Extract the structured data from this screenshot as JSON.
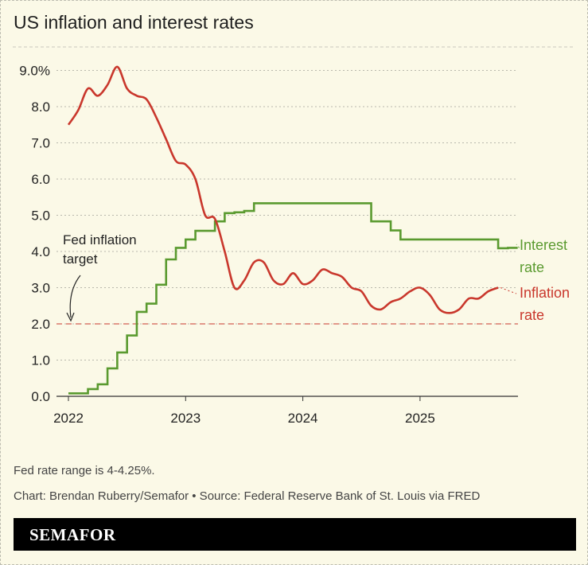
{
  "title": "US inflation and interest rates",
  "footnote": "Fed rate range is 4-4.25%.",
  "credit": "Chart: Brendan Ruberry/Semafor • Source: Federal Reserve Bank of St. Louis via FRED",
  "brand": "SEMAFOR",
  "chart_data": {
    "type": "line",
    "title": "US inflation and interest rates",
    "ylim": [
      0,
      9
    ],
    "yticks": [
      "0.0",
      "1.0",
      "2.0",
      "3.0",
      "4.0",
      "5.0",
      "6.0",
      "7.0",
      "8.0",
      "9.0%"
    ],
    "xticks": [
      "2022",
      "2023",
      "2024",
      "2025"
    ],
    "x_start": "2022-01",
    "x_step": "month",
    "series": [
      {
        "name": "Interest rate",
        "label_lines": [
          "Interest",
          "rate"
        ],
        "color": "#5a9a2f",
        "style": "step",
        "values": [
          0.08,
          0.08,
          0.2,
          0.33,
          0.77,
          1.21,
          1.68,
          2.33,
          2.56,
          3.08,
          3.78,
          4.1,
          4.33,
          4.57,
          4.57,
          4.83,
          5.06,
          5.08,
          5.12,
          5.33,
          5.33,
          5.33,
          5.33,
          5.33,
          5.33,
          5.33,
          5.33,
          5.33,
          5.33,
          5.33,
          5.33,
          4.83,
          4.83,
          4.58,
          4.33,
          4.33,
          4.33,
          4.33,
          4.33,
          4.33,
          4.33,
          4.33,
          4.33,
          4.33,
          4.09,
          4.1
        ]
      },
      {
        "name": "Inflation rate",
        "label_lines": [
          "Inflation",
          "rate"
        ],
        "color": "#c9372c",
        "style": "smooth",
        "values": [
          7.5,
          7.9,
          8.5,
          8.3,
          8.6,
          9.1,
          8.5,
          8.3,
          8.2,
          7.7,
          7.1,
          6.5,
          6.4,
          6.0,
          5.0,
          4.9,
          4.0,
          3.0,
          3.2,
          3.7,
          3.7,
          3.2,
          3.1,
          3.4,
          3.1,
          3.2,
          3.5,
          3.4,
          3.3,
          3.0,
          2.9,
          2.5,
          2.4,
          2.6,
          2.7,
          2.9,
          3.0,
          2.8,
          2.4,
          2.3,
          2.4,
          2.7,
          2.7,
          2.9,
          3.0
        ]
      }
    ],
    "annotations": [
      {
        "text_lines": [
          "Fed inflation",
          "target"
        ],
        "value": 2.0,
        "color": "#d9786c"
      }
    ]
  }
}
